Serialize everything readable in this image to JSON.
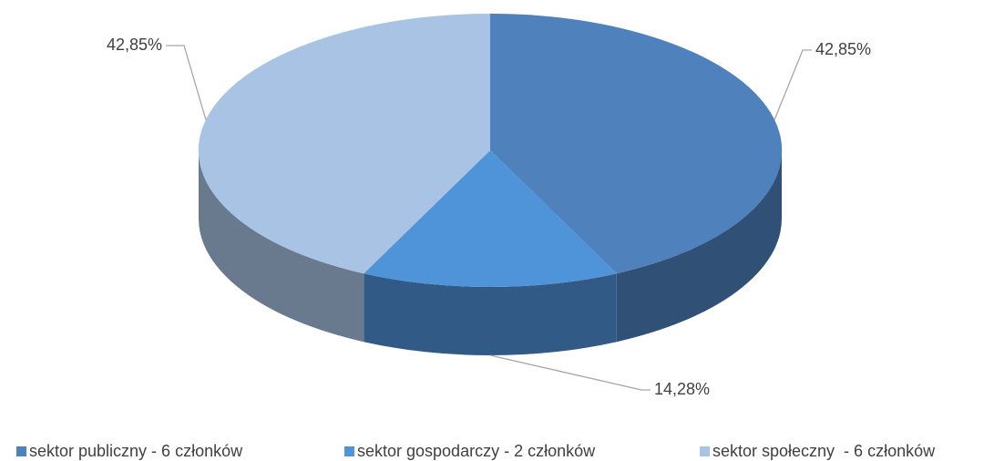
{
  "chart_data": {
    "type": "pie",
    "categories": [
      "sektor publiczny - 6 członków",
      "sektor gospodarczy - 2 członków",
      "sektor społeczny  - 6 członków"
    ],
    "values": [
      42.85,
      14.28,
      42.85
    ],
    "value_labels": [
      "42,85%",
      "14,28%",
      "42,85%"
    ],
    "colors": [
      "#4f81bd",
      "#4f93d8",
      "#a9c3e5"
    ],
    "legend": "bottom"
  }
}
